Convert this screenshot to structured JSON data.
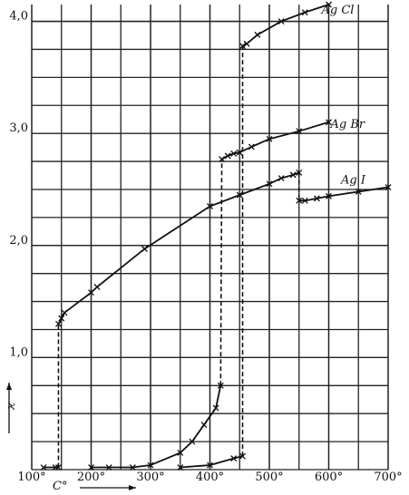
{
  "chart_data": {
    "type": "line",
    "x_label": "C°",
    "y_label": "ϰ",
    "xlim": [
      100,
      700
    ],
    "ylim": [
      0,
      4.15
    ],
    "xticks": [
      {
        "value": 100,
        "label": "100°"
      },
      {
        "value": 200,
        "label": "200°"
      },
      {
        "value": 300,
        "label": "300°"
      },
      {
        "value": 400,
        "label": "400°"
      },
      {
        "value": 500,
        "label": "500°"
      },
      {
        "value": 600,
        "label": "600°"
      },
      {
        "value": 700,
        "label": "700°"
      }
    ],
    "yticks": [
      {
        "value": 1,
        "label": "1,0"
      },
      {
        "value": 2,
        "label": "2,0"
      },
      {
        "value": 3,
        "label": "3,0"
      },
      {
        "value": 4,
        "label": "4,0"
      }
    ],
    "grid": true,
    "series": [
      {
        "name": "Ag Cl",
        "color": "#111111",
        "x": [
          350,
          400,
          440,
          455,
          null,
          455,
          462,
          480,
          520,
          560,
          600
        ],
        "values": [
          0.02,
          0.04,
          0.1,
          0.12,
          null,
          3.78,
          3.8,
          3.88,
          4.0,
          4.08,
          4.15
        ]
      },
      {
        "name": "Ag Br",
        "color": "#111111",
        "x": [
          200,
          230,
          270,
          300,
          350,
          370,
          390,
          410,
          418,
          null,
          420,
          430,
          440,
          450,
          470,
          500,
          550,
          600
        ],
        "values": [
          0.02,
          0.02,
          0.02,
          0.04,
          0.15,
          0.25,
          0.4,
          0.55,
          0.75,
          null,
          2.77,
          2.8,
          2.82,
          2.83,
          2.88,
          2.95,
          3.02,
          3.1
        ]
      },
      {
        "name": "Ag I",
        "color": "#111111",
        "x": [
          120,
          140,
          145,
          null,
          145,
          150,
          155,
          200,
          210,
          290,
          400,
          450,
          500,
          520,
          540,
          550,
          null,
          550,
          560,
          580,
          600,
          650,
          700
        ],
        "values": [
          0.02,
          0.02,
          0.02,
          null,
          1.3,
          1.35,
          1.4,
          1.58,
          1.63,
          1.97,
          2.35,
          2.45,
          2.55,
          2.6,
          2.63,
          2.65,
          null,
          2.4,
          2.4,
          2.42,
          2.44,
          2.48,
          2.52
        ]
      }
    ]
  }
}
